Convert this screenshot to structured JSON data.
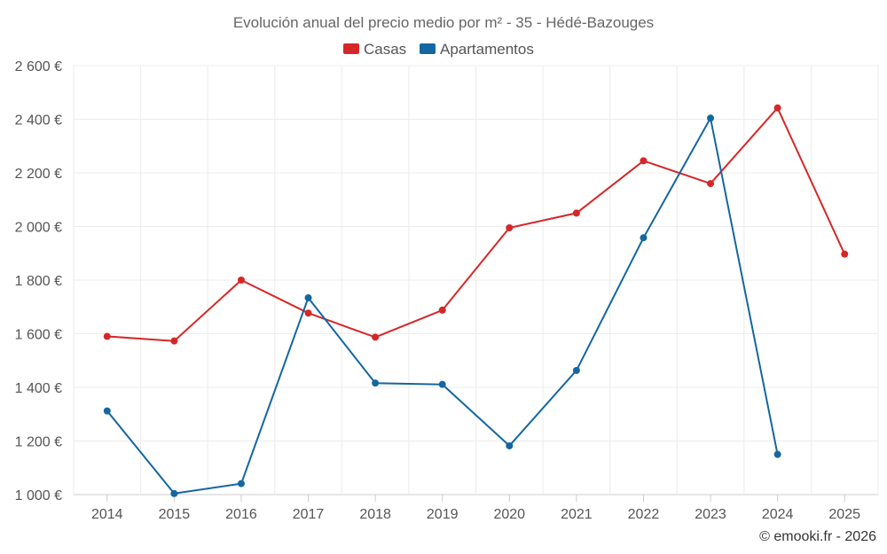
{
  "chart_data": {
    "type": "line",
    "title": "Evolución anual del precio medio por m² - 35 - Hédé-Bazouges",
    "categories": [
      "2014",
      "2015",
      "2016",
      "2017",
      "2018",
      "2019",
      "2020",
      "2021",
      "2022",
      "2023",
      "2024",
      "2025"
    ],
    "series": [
      {
        "name": "Casas",
        "color": "#d62728",
        "values": [
          1590,
          1573,
          1800,
          1677,
          1587,
          1688,
          1995,
          2050,
          2245,
          2160,
          2442,
          1897
        ]
      },
      {
        "name": "Apartamentos",
        "color": "#1467a0",
        "values": [
          1312,
          1004,
          1041,
          1734,
          1416,
          1411,
          1182,
          1463,
          1958,
          2404,
          1150,
          null
        ]
      }
    ],
    "ylim": [
      1000,
      2600
    ],
    "yticks": [
      1000,
      1200,
      1400,
      1600,
      1800,
      2000,
      2200,
      2400,
      2600
    ],
    "ytick_labels": [
      "1 000 €",
      "1 200 €",
      "1 400 €",
      "1 600 €",
      "1 800 €",
      "2 000 €",
      "2 200 €",
      "2 400 €",
      "2 600 €"
    ],
    "xlabel": "",
    "ylabel": "",
    "grid": true,
    "legend_position": "top-center"
  },
  "credit": "© emooki.fr - 2026"
}
